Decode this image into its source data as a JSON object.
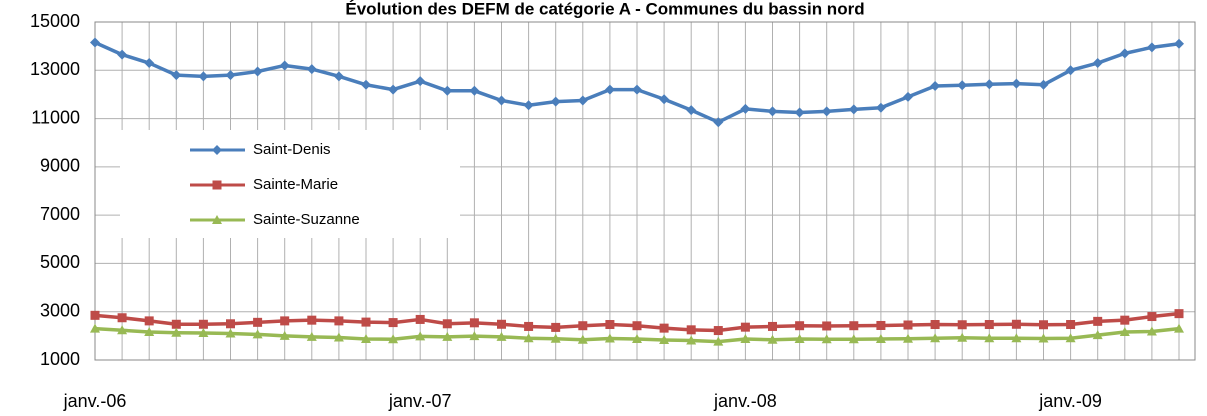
{
  "chart_data": {
    "type": "line",
    "title": "Évolution des DEFM de catégorie A - Communes du bassin nord",
    "categories": [
      "janv.-06",
      null,
      null,
      null,
      null,
      null,
      null,
      null,
      null,
      null,
      null,
      null,
      "janv.-07",
      null,
      null,
      null,
      null,
      null,
      null,
      null,
      null,
      null,
      null,
      null,
      "janv.-08",
      null,
      null,
      null,
      null,
      null,
      null,
      null,
      null,
      null,
      null,
      null,
      "janv.-09",
      null,
      null,
      null,
      null
    ],
    "series": [
      {
        "name": "Saint-Denis",
        "color": "#4a7ebb",
        "marker": "diamond",
        "values": [
          14150,
          13650,
          13300,
          12800,
          12750,
          12800,
          12950,
          13200,
          13050,
          12750,
          12400,
          12200,
          12550,
          12150,
          12150,
          11750,
          11550,
          11700,
          11750,
          12200,
          12200,
          11800,
          11350,
          10850,
          11400,
          11300,
          11250,
          11300,
          11380,
          11450,
          11900,
          12350,
          12380,
          12420,
          12450,
          12400,
          13000,
          13300,
          13700,
          13950,
          14100
        ]
      },
      {
        "name": "Sainte-Marie",
        "color": "#be4b48",
        "marker": "square",
        "values": [
          2850,
          2750,
          2620,
          2480,
          2480,
          2500,
          2560,
          2620,
          2650,
          2620,
          2570,
          2550,
          2680,
          2500,
          2540,
          2480,
          2390,
          2350,
          2420,
          2470,
          2420,
          2320,
          2250,
          2220,
          2360,
          2390,
          2420,
          2410,
          2420,
          2430,
          2450,
          2470,
          2460,
          2470,
          2480,
          2460,
          2470,
          2600,
          2650,
          2800,
          2920
        ]
      },
      {
        "name": "Sainte-Suzanne",
        "color": "#98b954",
        "marker": "triangle",
        "values": [
          2300,
          2230,
          2160,
          2130,
          2120,
          2100,
          2060,
          2000,
          1960,
          1930,
          1870,
          1860,
          1980,
          1960,
          1990,
          1960,
          1900,
          1880,
          1840,
          1890,
          1870,
          1830,
          1810,
          1760,
          1870,
          1840,
          1870,
          1860,
          1860,
          1870,
          1880,
          1900,
          1920,
          1900,
          1900,
          1890,
          1900,
          2030,
          2160,
          2180,
          2300
        ]
      }
    ],
    "ylim": [
      1000,
      15000
    ],
    "yticks": [
      1000,
      3000,
      5000,
      7000,
      9000,
      11000,
      13000,
      15000
    ],
    "grid": true
  }
}
